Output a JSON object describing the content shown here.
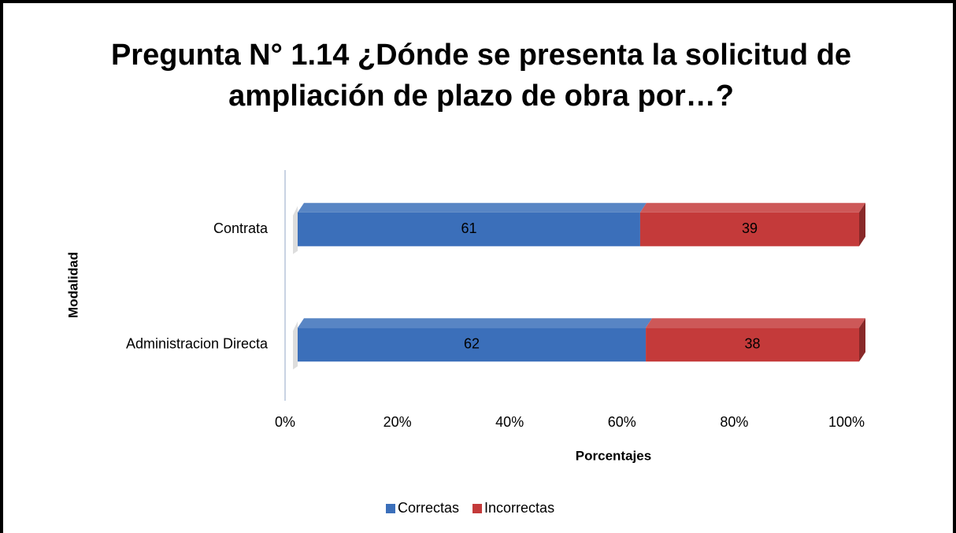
{
  "chart_data": {
    "type": "bar",
    "orientation": "horizontal",
    "stacked": true,
    "title": "Pregunta N° 1.14 ¿Dónde se presenta la solicitud de ampliación de plazo de obra por…?",
    "categories": [
      "Contrata",
      "Administracion Directa"
    ],
    "series": [
      {
        "name": "Correctas",
        "color": "#3b6fba",
        "values": [
          61,
          62
        ]
      },
      {
        "name": "Incorrectas",
        "color": "#c43a3a",
        "values": [
          39,
          38
        ]
      }
    ],
    "xlim": [
      0,
      100
    ],
    "xticks": [
      {
        "value": 0,
        "label": "0%"
      },
      {
        "value": 20,
        "label": "20%"
      },
      {
        "value": 40,
        "label": "40%"
      },
      {
        "value": 60,
        "label": "60%"
      },
      {
        "value": 80,
        "label": "80%"
      },
      {
        "value": 100,
        "label": "100%"
      }
    ],
    "x_label": "Porcentajes",
    "y_label": "Modalidad",
    "legend": "bottom",
    "grid": false
  }
}
